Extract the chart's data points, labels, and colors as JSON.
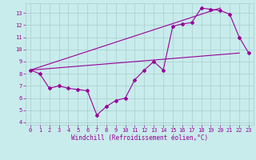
{
  "title": "",
  "xlabel": "Windchill (Refroidissement éolien,°C)",
  "background_color": "#c8ecec",
  "line_color": "#990099",
  "xlim": [
    -0.5,
    23.5
  ],
  "ylim": [
    3.8,
    13.8
  ],
  "xticks": [
    0,
    1,
    2,
    3,
    4,
    5,
    6,
    7,
    8,
    9,
    10,
    11,
    12,
    13,
    14,
    15,
    16,
    17,
    18,
    19,
    20,
    21,
    22,
    23
  ],
  "yticks": [
    4,
    5,
    6,
    7,
    8,
    9,
    10,
    11,
    12,
    13
  ],
  "grid_color": "#aacccc",
  "series1_x": [
    0,
    1,
    2,
    3,
    4,
    5,
    6,
    7,
    8,
    9,
    10,
    11,
    12,
    13,
    14,
    15,
    16,
    17,
    18,
    19,
    20,
    21,
    22,
    23
  ],
  "series1_y": [
    8.3,
    8.0,
    6.8,
    7.0,
    6.8,
    6.7,
    6.6,
    4.6,
    5.3,
    5.8,
    6.0,
    7.5,
    8.3,
    9.0,
    8.3,
    11.9,
    12.1,
    12.2,
    13.4,
    13.3,
    13.2,
    12.9,
    11.0,
    9.7
  ],
  "series2_x": [
    0,
    22
  ],
  "series2_y": [
    8.3,
    9.7
  ],
  "series3_x": [
    0,
    20
  ],
  "series3_y": [
    8.3,
    13.4
  ],
  "tick_fontsize": 5.0,
  "xlabel_fontsize": 5.5
}
